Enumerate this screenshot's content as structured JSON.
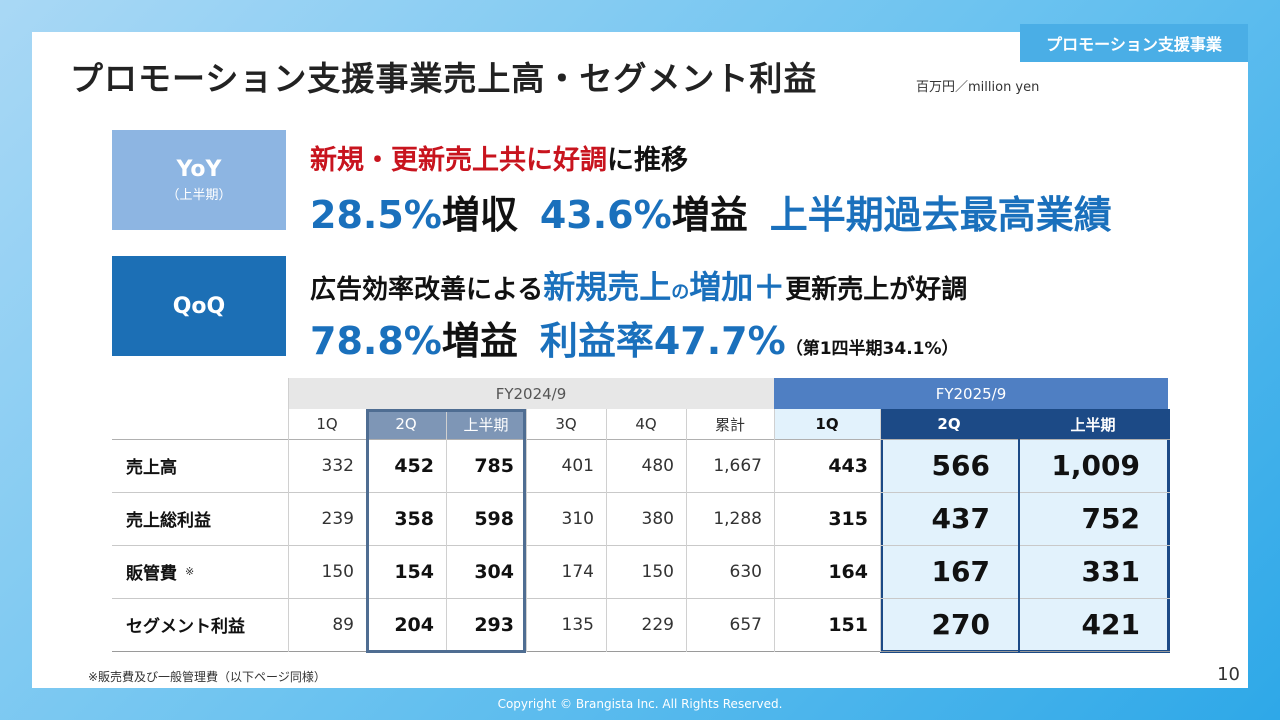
{
  "tag": "プロモーション支援事業",
  "title": "プロモーション支援事業売上高・セグメント利益",
  "unit": "百万円／million yen",
  "yoy": {
    "label": "YoY",
    "sub": "（上半期）",
    "line1_red": "新規・更新売上共に好調",
    "line1_black": "に推移",
    "line2_a": "28.5%",
    "line2_b": "増収",
    "line2_c": "43.6%",
    "line2_d": "増益",
    "line2_e": "上半期過去最高業績"
  },
  "qoq": {
    "label": "QoQ",
    "line1_a": "広告効率改善による",
    "line1_b": "新規売上",
    "line1_c": "の",
    "line1_d": "増加＋",
    "line1_e": "更新売上が好調",
    "line2_a": "78.8%",
    "line2_b": "増益",
    "line2_c": "利益率47.7%",
    "line2_d": "（第1四半期34.1%）"
  },
  "table": {
    "fy2024": "FY2024/9",
    "fy2025": "FY2025/9",
    "cols": [
      "1Q",
      "2Q",
      "上半期",
      "3Q",
      "4Q",
      "累計",
      "1Q",
      "2Q",
      "上半期"
    ],
    "rows": [
      {
        "label": "売上高",
        "mark": "",
        "values": [
          "332",
          "452",
          "785",
          "401",
          "480",
          "1,667",
          "443",
          "566",
          "1,009"
        ]
      },
      {
        "label": "売上総利益",
        "mark": "",
        "values": [
          "239",
          "358",
          "598",
          "310",
          "380",
          "1,288",
          "315",
          "437",
          "752"
        ]
      },
      {
        "label": "販管費",
        "mark": "※",
        "values": [
          "150",
          "154",
          "304",
          "174",
          "150",
          "630",
          "164",
          "167",
          "331"
        ]
      },
      {
        "label": "セグメント利益",
        "mark": "",
        "values": [
          "89",
          "204",
          "293",
          "135",
          "229",
          "657",
          "151",
          "270",
          "421"
        ]
      }
    ]
  },
  "footnote": "※販売費及び一般管理費（以下ページ同様）",
  "page_number": "10",
  "copyright": "Copyright © Brangista Inc. All Rights Reserved.",
  "colors": {
    "red": "#c8141e",
    "blue": "#1a70bc",
    "yoy_box": "#8db5e2",
    "qoq_box": "#1c6fb5",
    "fy2025_header": "#4f7fc3"
  }
}
